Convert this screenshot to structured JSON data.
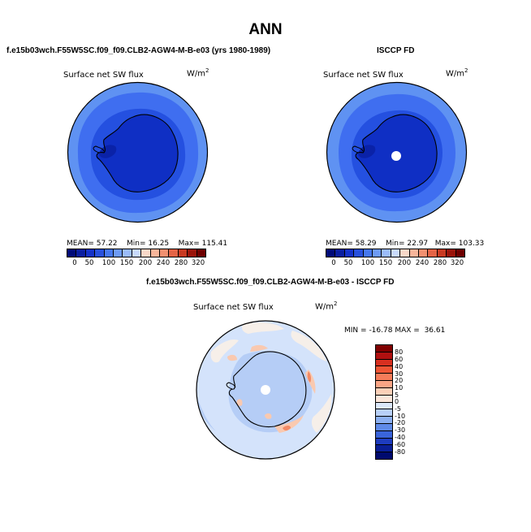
{
  "page": {
    "title": "ANN"
  },
  "panels": {
    "model": {
      "case_title": "f.e15b03wch.F55W5SC.f09_f09.CLB2-AGW4-M-B-e03 (yrs 1980-1989)",
      "variable": "Surface net SW flux",
      "units_base": "W/m",
      "units_exp": "2",
      "stats": {
        "mean_label": "MEAN=",
        "mean": "57.22",
        "min_label": "Min=",
        "min": "16.25",
        "max_label": "Max=",
        "max": "115.41"
      }
    },
    "obs": {
      "case_title": "ISCCP FD",
      "variable": "Surface net SW flux",
      "units_base": "W/m",
      "units_exp": "2",
      "stats": {
        "mean_label": "MEAN=",
        "mean": "58.29",
        "min_label": "Min=",
        "min": "22.97",
        "max_label": "Max=",
        "max": "103.33"
      }
    },
    "diff": {
      "case_title": "f.e15b03wch.F55W5SC.f09_f09.CLB2-AGW4-M-B-e03 - ISCCP FD",
      "variable": "Surface net SW flux",
      "units_base": "W/m",
      "units_exp": "2",
      "stats": {
        "min_label": "MIN =",
        "min": "-16.78",
        "max_label": "MAX =",
        "max": "36.61"
      }
    }
  },
  "colorbars": {
    "abs_levels": [
      "0",
      "50",
      "100",
      "150",
      "200",
      "240",
      "280",
      "320"
    ],
    "abs_colors": [
      "#000a78",
      "#0a1ea0",
      "#1432c8",
      "#2850dc",
      "#4678ee",
      "#6e9bf5",
      "#9bbcfa",
      "#c8dafc",
      "#f8d8c8",
      "#f7b59a",
      "#f29070",
      "#e46446",
      "#c83a22",
      "#9a140a",
      "#6e0000"
    ],
    "diff_levels": [
      "80",
      "60",
      "40",
      "30",
      "20",
      "10",
      "5",
      "0",
      "-5",
      "-10",
      "-20",
      "-30",
      "-40",
      "-60",
      "-80"
    ],
    "diff_colors": [
      "#800000",
      "#b01010",
      "#d83020",
      "#ee5535",
      "#f67c5a",
      "#faa585",
      "#fcd0b8",
      "#fbe6da",
      "#dce8fb",
      "#b8d0f8",
      "#8cb0f2",
      "#5f8ae8",
      "#3a64da",
      "#1e3cc0",
      "#0a1e96",
      "#000a6e"
    ]
  },
  "map_colors": {
    "ocean_outer": "#5f92f2",
    "ocean_mid": "#3f6ef0",
    "ocean_inner": "#2450e0",
    "ice": "#0f2fc4",
    "ice_dark": "#0a22a8",
    "coast": "#000000",
    "diff_bg": "#d4e3fb",
    "diff_light": "#b5cdf6",
    "diff_warm": "#f9c9b0",
    "diff_hot": "#f28a66",
    "diff_white": "#f6efe9"
  }
}
